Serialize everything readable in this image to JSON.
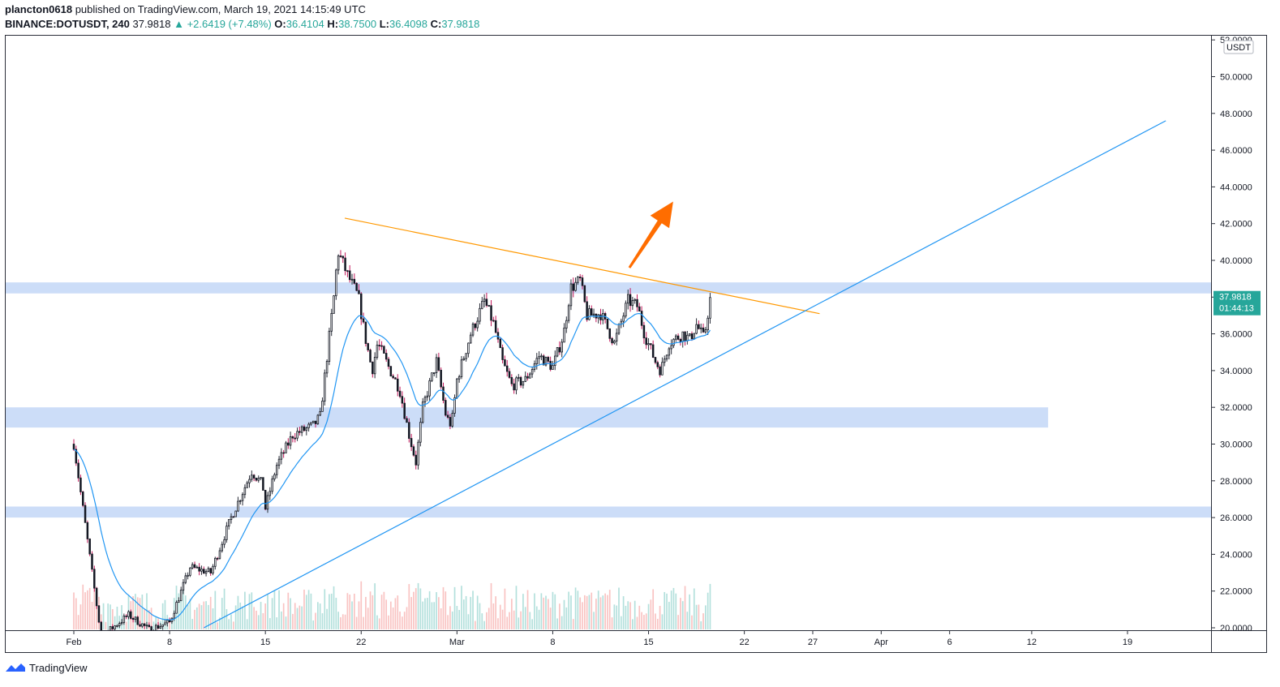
{
  "header": {
    "line1": {
      "author": "plancton0618",
      "text": " published on TradingView.com, March 19, 2021 14:15:49 UTC"
    },
    "line2": {
      "symbol": "BINANCE:DOTUSDT, 240",
      "last": "37.9818",
      "change": "▲ +2.6419 (+7.48%)",
      "o_label": "O:",
      "o": "36.4104",
      "h_label": "H:",
      "h": "38.7500",
      "l_label": "L:",
      "l": "36.4098",
      "c_label": "C:",
      "c": "37.9818"
    }
  },
  "footer": {
    "brand": "TradingView"
  },
  "chart_data": {
    "type": "candlestick",
    "currency_badge": "USDT",
    "price_label": {
      "price": "37.9818",
      "countdown": "01:44:13"
    },
    "y_ticks": [
      "52.0000",
      "50.0000",
      "48.0000",
      "46.0000",
      "44.0000",
      "42.0000",
      "40.0000",
      "38.0000",
      "36.0000",
      "34.0000",
      "32.0000",
      "30.0000",
      "28.0000",
      "26.0000",
      "24.0000",
      "22.0000",
      "20.0000"
    ],
    "y_range": [
      20,
      52
    ],
    "x_ticks": [
      {
        "label": "Feb",
        "day": 32
      },
      {
        "label": "8",
        "day": 39
      },
      {
        "label": "15",
        "day": 46
      },
      {
        "label": "22",
        "day": 53
      },
      {
        "label": "Mar",
        "day": 60
      },
      {
        "label": "8",
        "day": 67
      },
      {
        "label": "15",
        "day": 74
      },
      {
        "label": "22",
        "day": 81
      },
      {
        "label": "27",
        "day": 86
      },
      {
        "label": "Apr",
        "day": 91
      },
      {
        "label": "6",
        "day": 96
      },
      {
        "label": "12",
        "day": 102
      },
      {
        "label": "19",
        "day": 109
      }
    ],
    "zones": [
      {
        "name": "resistance-zone",
        "from": 38.2,
        "to": 38.8,
        "end_day": null
      },
      {
        "name": "support-zone-1",
        "from": 30.9,
        "to": 32.0,
        "end_day": 103.2
      },
      {
        "name": "support-zone-2",
        "from": 26.0,
        "to": 26.6,
        "end_day": null
      }
    ],
    "trendlines": [
      {
        "name": "descending-trendline",
        "color": "#ff9800",
        "from": {
          "day": 51.8,
          "price": 42.3
        },
        "to": {
          "day": 86.5,
          "price": 37.1
        }
      },
      {
        "name": "ascending-trendline",
        "color": "#2196f3",
        "from": {
          "day": 41.5,
          "price": 20.0
        },
        "to": {
          "day": 111.8,
          "price": 47.6
        }
      }
    ],
    "arrow": {
      "color": "#ff6d00",
      "from": {
        "day": 72.6,
        "price": 39.6
      },
      "to": {
        "day": 75.8,
        "price": 43.2
      }
    },
    "candle_keys": [
      {
        "day": 32.0,
        "price": 30.0
      },
      {
        "day": 34.0,
        "price": 19.5
      },
      {
        "day": 36.0,
        "price": 20.7
      },
      {
        "day": 37.5,
        "price": 19.9
      },
      {
        "day": 39.0,
        "price": 20.3
      },
      {
        "day": 40.5,
        "price": 23.3
      },
      {
        "day": 42.0,
        "price": 23.0
      },
      {
        "day": 43.5,
        "price": 26.0
      },
      {
        "day": 45.0,
        "price": 28.5
      },
      {
        "day": 45.8,
        "price": 27.8
      },
      {
        "day": 46.0,
        "price": 26.5
      },
      {
        "day": 46.8,
        "price": 28.8
      },
      {
        "day": 48.0,
        "price": 30.5
      },
      {
        "day": 49.5,
        "price": 31.0
      },
      {
        "day": 50.0,
        "price": 31.5
      },
      {
        "day": 51.0,
        "price": 38.0
      },
      {
        "day": 51.3,
        "price": 40.5
      },
      {
        "day": 52.0,
        "price": 39.2
      },
      {
        "day": 52.8,
        "price": 38.0
      },
      {
        "day": 53.3,
        "price": 35.8
      },
      {
        "day": 53.8,
        "price": 34.0
      },
      {
        "day": 54.2,
        "price": 35.5
      },
      {
        "day": 55.0,
        "price": 34.2
      },
      {
        "day": 55.8,
        "price": 33.0
      },
      {
        "day": 56.5,
        "price": 30.5
      },
      {
        "day": 57.0,
        "price": 29.0
      },
      {
        "day": 57.5,
        "price": 32.0
      },
      {
        "day": 58.5,
        "price": 34.5
      },
      {
        "day": 59.2,
        "price": 31.5
      },
      {
        "day": 59.6,
        "price": 31.0
      },
      {
        "day": 60.0,
        "price": 33.5
      },
      {
        "day": 61.0,
        "price": 36.0
      },
      {
        "day": 62.0,
        "price": 37.8
      },
      {
        "day": 62.7,
        "price": 36.5
      },
      {
        "day": 63.3,
        "price": 34.5
      },
      {
        "day": 64.0,
        "price": 33.2
      },
      {
        "day": 65.0,
        "price": 33.5
      },
      {
        "day": 66.0,
        "price": 34.8
      },
      {
        "day": 67.0,
        "price": 34.2
      },
      {
        "day": 67.8,
        "price": 36.0
      },
      {
        "day": 68.3,
        "price": 38.5
      },
      {
        "day": 69.0,
        "price": 38.9
      },
      {
        "day": 69.5,
        "price": 37.0
      },
      {
        "day": 70.5,
        "price": 37.1
      },
      {
        "day": 71.5,
        "price": 35.5
      },
      {
        "day": 72.5,
        "price": 37.8
      },
      {
        "day": 73.2,
        "price": 37.5
      },
      {
        "day": 73.7,
        "price": 36.0
      },
      {
        "day": 74.5,
        "price": 34.5
      },
      {
        "day": 74.9,
        "price": 34.0
      },
      {
        "day": 75.5,
        "price": 35.5
      },
      {
        "day": 76.5,
        "price": 36.0
      },
      {
        "day": 77.0,
        "price": 35.7
      },
      {
        "day": 77.5,
        "price": 36.5
      },
      {
        "day": 78.0,
        "price": 35.8
      },
      {
        "day": 78.2,
        "price": 36.4
      },
      {
        "day": 78.5,
        "price": 37.98
      }
    ],
    "ema_offset": 0.6,
    "candle_interval_hours": 4
  }
}
